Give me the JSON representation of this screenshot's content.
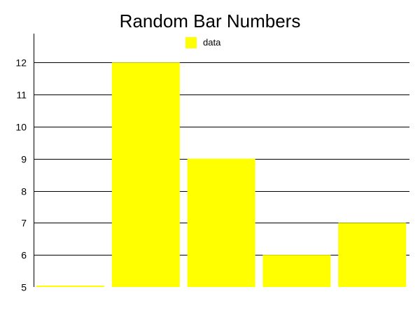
{
  "chart_data": {
    "type": "bar",
    "title": "Random Bar Numbers",
    "xlabel": "",
    "ylabel": "",
    "series": [
      {
        "name": "data",
        "color": "#ffff00",
        "values": [
          5,
          12,
          9,
          6,
          7
        ]
      }
    ],
    "ylim": [
      5,
      12.9
    ],
    "yticks": [
      5,
      6,
      7,
      8,
      9,
      10,
      11,
      12
    ],
    "grid": true,
    "legend_position": "top-center"
  }
}
